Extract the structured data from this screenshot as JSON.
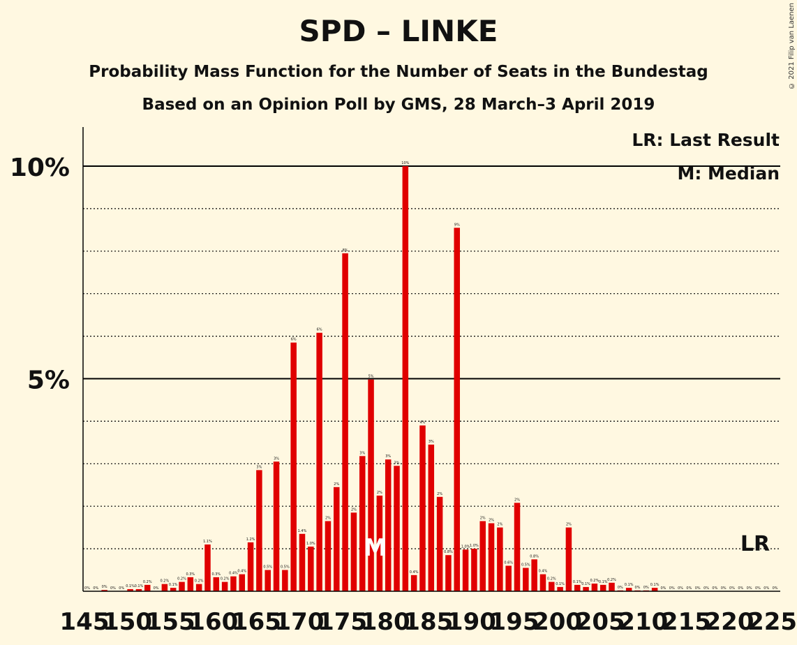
{
  "title": "SPD – LINKE",
  "subtitle": "Probability Mass Function for the Number of Seats in the Bundestag",
  "subtitle2": "Based on an Opinion Poll by GMS, 28 March–3 April 2019",
  "copyright": "© 2021 Filip van Laenen",
  "colors": {
    "bar": "#e00000",
    "background": "#fff8e1",
    "axis": "#000000"
  },
  "chart_data": {
    "type": "bar",
    "x_start": 145,
    "x_end": 225,
    "xtick_labels": [
      "145",
      "150",
      "155",
      "160",
      "165",
      "170",
      "175",
      "180",
      "185",
      "190",
      "195",
      "200",
      "205",
      "210",
      "215",
      "220",
      "225"
    ],
    "ytick_labels": [
      "5%",
      "10%"
    ],
    "ylim": [
      0,
      11
    ],
    "median_seat": 178,
    "median_marker": "M",
    "last_result_seat": 223,
    "last_result_marker": "LR",
    "legend": [
      "LR: Last Result",
      "M: Median"
    ],
    "grid": "dotted every 1%, solid at 5% and 10%",
    "values": [
      0,
      0,
      0.03,
      0,
      0,
      0.05,
      0.05,
      0.15,
      0,
      0.17,
      0.08,
      0.22,
      0.33,
      0.17,
      1.1,
      0.33,
      0.22,
      0.35,
      0.4,
      1.15,
      2.85,
      0.5,
      3.05,
      0.5,
      5.85,
      1.35,
      1.05,
      6.08,
      1.65,
      2.45,
      7.95,
      1.85,
      3.18,
      4.98,
      2.25,
      3.1,
      2.95,
      10.0,
      0.38,
      3.9,
      3.45,
      2.22,
      0.85,
      8.55,
      0.98,
      1.0,
      1.65,
      1.6,
      1.5,
      0.6,
      2.08,
      0.55,
      0.75,
      0.4,
      0.22,
      0.1,
      1.5,
      0.15,
      0.1,
      0.18,
      0.15,
      0.2,
      0.02,
      0.08,
      0.02,
      0.02,
      0.08,
      0,
      0,
      0,
      0,
      0,
      0,
      0,
      0,
      0,
      0,
      0,
      0,
      0,
      0
    ],
    "data_labels": [
      "0%",
      "0%",
      "0%",
      "0%",
      "0%",
      "0.1%",
      "0.1%",
      "0.2%",
      "0%",
      "0.2%",
      "0.1%",
      "0.2%",
      "0.3%",
      "0.2%",
      "1.1%",
      "0.3%",
      "0.2%",
      "0.4%",
      "0.4%",
      "1.2%",
      "3%",
      "0.5%",
      "3%",
      "0.5%",
      "6%",
      "1.4%",
      "1.0%",
      "6%",
      "2%",
      "2%",
      "8%",
      "2%",
      "3%",
      "5%",
      "2%",
      "3%",
      "3%",
      "10%",
      "0.4%",
      "4%",
      "3%",
      "2%",
      "0.8%",
      "9%",
      "1.0%",
      "1.0%",
      "2%",
      "2%",
      "2%",
      "0.6%",
      "2%",
      "0.5%",
      "0.8%",
      "0.4%",
      "0.2%",
      "0.1%",
      "2%",
      "0.1%",
      "0.1%",
      "0.2%",
      "0.1%",
      "0.2%",
      "0%",
      "0.1%",
      "0%",
      "0%",
      "0.1%",
      "0%",
      "0%",
      "0%",
      "0%",
      "0%",
      "0%",
      "0%",
      "0%",
      "0%",
      "0%",
      "0%",
      "0%",
      "0%",
      "0%"
    ]
  }
}
